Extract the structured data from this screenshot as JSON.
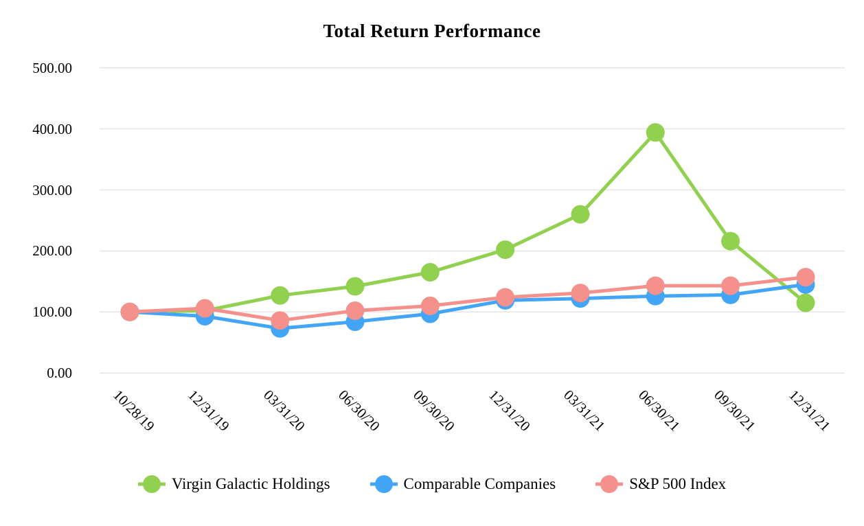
{
  "title": "Total Return Performance",
  "chart_data": {
    "type": "line",
    "title": "Total Return Performance",
    "x": [
      "10/28/19",
      "12/31/19",
      "03/31/20",
      "06/30/20",
      "09/30/20",
      "12/31/20",
      "03/31/21",
      "06/30/21",
      "09/30/21",
      "12/31/21"
    ],
    "series": [
      {
        "name": "Virgin Galactic Holdings",
        "color": "#92D050",
        "values": [
          100,
          102,
          127,
          142,
          165,
          202,
          260,
          394,
          216,
          115
        ]
      },
      {
        "name": "Comparable Companies",
        "color": "#42A5F5",
        "values": [
          100,
          93,
          73,
          84,
          97,
          119,
          122,
          126,
          128,
          145
        ]
      },
      {
        "name": "S&P 500 Index",
        "color": "#F5918C",
        "values": [
          100,
          106,
          86,
          102,
          110,
          124,
          131,
          143,
          143,
          157
        ]
      }
    ],
    "xlabel": "",
    "ylabel": "",
    "ylim": [
      0,
      500
    ],
    "ytick_values": [
      500,
      400,
      300,
      200,
      100,
      0
    ],
    "yticks": [
      "500.00",
      "400.00",
      "300.00",
      "200.00",
      "100.00",
      "0.00"
    ],
    "grid": true,
    "gridline_color": "#E6E6E6",
    "legend_position": "bottom",
    "background_color": "#FFFFFF",
    "text_color": "#000000"
  }
}
